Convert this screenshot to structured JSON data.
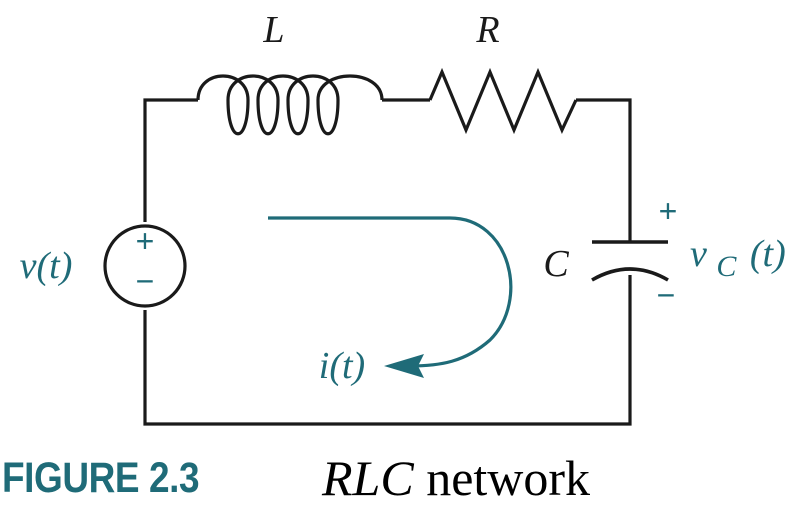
{
  "colors": {
    "wire": "#1a1a1a",
    "accent": "#1f6b78"
  },
  "labels": {
    "inductor": "L",
    "resistor": "R",
    "capacitor": "C",
    "source_voltage": "v(t)",
    "capacitor_voltage": "v",
    "capacitor_voltage_sub": "C",
    "capacitor_voltage_arg": "(t)",
    "current": "i(t)",
    "plus": "+",
    "minus": "−"
  },
  "caption": {
    "figure": "FIGURE 2.3",
    "title_italic": "RLC",
    "title_rest": " network"
  }
}
